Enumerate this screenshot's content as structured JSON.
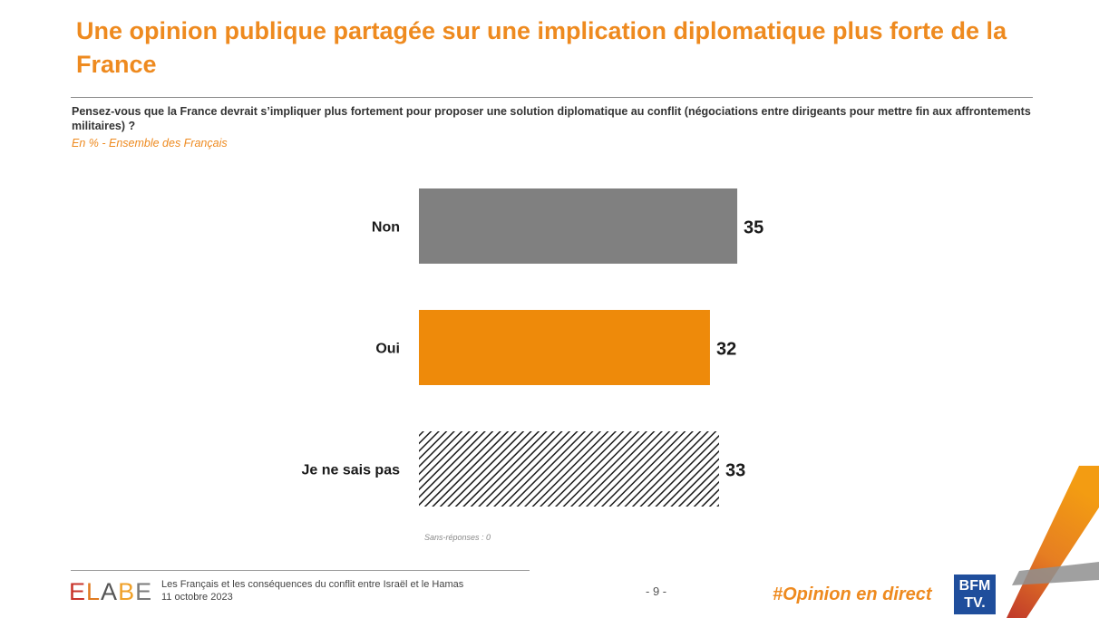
{
  "title": "Une opinion publique partagée sur une implication diplomatique plus forte de la France",
  "question": "Pensez-vous que la France devrait s’impliquer plus fortement pour proposer une solution diplomatique au conflit (négociations entre dirigeants pour mettre fin aux affrontements militaires) ?",
  "subtitle": "En % - Ensemble des Français",
  "note": "Sans-réponses : 0",
  "footer": {
    "logo": [
      "E",
      "L",
      "A",
      "B",
      "E"
    ],
    "line1": "Les Français et les conséquences du conflit entre Israël et le Hamas",
    "line2": "11 octobre 2023",
    "page": "- 9 -",
    "hashtag": "#Opinion en direct",
    "bfm_line1": "BFM",
    "bfm_line2": "TV."
  },
  "colors": {
    "accent": "#EE8A1F",
    "non": "#808080",
    "oui": "#EE8A0A",
    "nsp": "#1a1a1a"
  },
  "chart_data": {
    "type": "bar",
    "orientation": "horizontal",
    "categories": [
      "Non",
      "Oui",
      "Je ne sais pas"
    ],
    "values": [
      35,
      32,
      33
    ],
    "fills": [
      "solid-gray",
      "solid-orange",
      "hatched"
    ],
    "unit": "%",
    "title": "",
    "xlabel": "",
    "ylabel": "",
    "xlim": [
      0,
      100
    ]
  }
}
